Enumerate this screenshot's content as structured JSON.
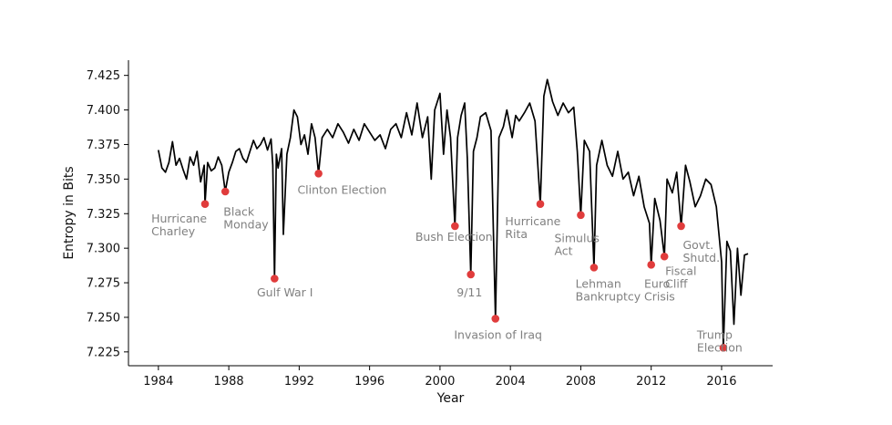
{
  "chart_data": {
    "type": "line",
    "title": "",
    "xlabel": "Year",
    "ylabel": "Entropy in Bits",
    "xlim": [
      1982.3,
      2018.9
    ],
    "ylim": [
      7.215,
      7.436
    ],
    "grid": false,
    "x_ticks": [
      1984,
      1988,
      1992,
      1996,
      2000,
      2004,
      2008,
      2012,
      2016
    ],
    "y_ticks": [
      7.225,
      7.25,
      7.275,
      7.3,
      7.325,
      7.35,
      7.375,
      7.4,
      7.425
    ],
    "series": [
      {
        "name": "Entropy",
        "color": "#000000",
        "points": [
          [
            1984.0,
            7.371
          ],
          [
            1984.2,
            7.358
          ],
          [
            1984.4,
            7.355
          ],
          [
            1984.6,
            7.362
          ],
          [
            1984.8,
            7.377
          ],
          [
            1985.0,
            7.36
          ],
          [
            1985.2,
            7.365
          ],
          [
            1985.4,
            7.357
          ],
          [
            1985.6,
            7.35
          ],
          [
            1985.8,
            7.366
          ],
          [
            1986.0,
            7.36
          ],
          [
            1986.2,
            7.37
          ],
          [
            1986.4,
            7.348
          ],
          [
            1986.6,
            7.36
          ],
          [
            1986.65,
            7.332
          ],
          [
            1986.8,
            7.362
          ],
          [
            1987.0,
            7.356
          ],
          [
            1987.2,
            7.358
          ],
          [
            1987.4,
            7.366
          ],
          [
            1987.6,
            7.36
          ],
          [
            1987.8,
            7.341
          ],
          [
            1988.0,
            7.355
          ],
          [
            1988.2,
            7.362
          ],
          [
            1988.4,
            7.37
          ],
          [
            1988.6,
            7.372
          ],
          [
            1988.8,
            7.365
          ],
          [
            1989.0,
            7.362
          ],
          [
            1989.2,
            7.37
          ],
          [
            1989.4,
            7.378
          ],
          [
            1989.6,
            7.372
          ],
          [
            1989.8,
            7.375
          ],
          [
            1990.0,
            7.38
          ],
          [
            1990.2,
            7.371
          ],
          [
            1990.4,
            7.379
          ],
          [
            1990.5,
            7.36
          ],
          [
            1990.6,
            7.278
          ],
          [
            1990.7,
            7.368
          ],
          [
            1990.8,
            7.358
          ],
          [
            1991.0,
            7.372
          ],
          [
            1991.1,
            7.31
          ],
          [
            1991.3,
            7.368
          ],
          [
            1991.5,
            7.38
          ],
          [
            1991.7,
            7.4
          ],
          [
            1991.9,
            7.395
          ],
          [
            1992.1,
            7.375
          ],
          [
            1992.3,
            7.382
          ],
          [
            1992.5,
            7.368
          ],
          [
            1992.7,
            7.39
          ],
          [
            1992.9,
            7.38
          ],
          [
            1993.1,
            7.354
          ],
          [
            1993.3,
            7.38
          ],
          [
            1993.6,
            7.386
          ],
          [
            1993.9,
            7.38
          ],
          [
            1994.2,
            7.39
          ],
          [
            1994.5,
            7.384
          ],
          [
            1994.8,
            7.376
          ],
          [
            1995.1,
            7.386
          ],
          [
            1995.4,
            7.378
          ],
          [
            1995.7,
            7.39
          ],
          [
            1996.0,
            7.384
          ],
          [
            1996.3,
            7.378
          ],
          [
            1996.6,
            7.382
          ],
          [
            1996.9,
            7.372
          ],
          [
            1997.2,
            7.386
          ],
          [
            1997.5,
            7.39
          ],
          [
            1997.8,
            7.38
          ],
          [
            1998.1,
            7.398
          ],
          [
            1998.4,
            7.382
          ],
          [
            1998.7,
            7.405
          ],
          [
            1999.0,
            7.38
          ],
          [
            1999.3,
            7.395
          ],
          [
            1999.5,
            7.35
          ],
          [
            1999.7,
            7.4
          ],
          [
            2000.0,
            7.412
          ],
          [
            2000.2,
            7.368
          ],
          [
            2000.4,
            7.4
          ],
          [
            2000.6,
            7.38
          ],
          [
            2000.85,
            7.316
          ],
          [
            2001.0,
            7.38
          ],
          [
            2001.2,
            7.396
          ],
          [
            2001.4,
            7.405
          ],
          [
            2001.55,
            7.365
          ],
          [
            2001.75,
            7.281
          ],
          [
            2001.9,
            7.37
          ],
          [
            2002.1,
            7.38
          ],
          [
            2002.3,
            7.395
          ],
          [
            2002.6,
            7.398
          ],
          [
            2002.9,
            7.385
          ],
          [
            2003.15,
            7.249
          ],
          [
            2003.35,
            7.38
          ],
          [
            2003.6,
            7.388
          ],
          [
            2003.8,
            7.4
          ],
          [
            2004.1,
            7.38
          ],
          [
            2004.3,
            7.396
          ],
          [
            2004.5,
            7.392
          ],
          [
            2004.8,
            7.398
          ],
          [
            2005.1,
            7.405
          ],
          [
            2005.4,
            7.392
          ],
          [
            2005.7,
            7.332
          ],
          [
            2005.9,
            7.41
          ],
          [
            2006.1,
            7.422
          ],
          [
            2006.4,
            7.406
          ],
          [
            2006.7,
            7.396
          ],
          [
            2007.0,
            7.405
          ],
          [
            2007.3,
            7.398
          ],
          [
            2007.6,
            7.402
          ],
          [
            2007.8,
            7.37
          ],
          [
            2008.0,
            7.324
          ],
          [
            2008.2,
            7.378
          ],
          [
            2008.5,
            7.37
          ],
          [
            2008.75,
            7.286
          ],
          [
            2008.9,
            7.36
          ],
          [
            2009.2,
            7.378
          ],
          [
            2009.5,
            7.36
          ],
          [
            2009.8,
            7.352
          ],
          [
            2010.1,
            7.37
          ],
          [
            2010.4,
            7.35
          ],
          [
            2010.7,
            7.355
          ],
          [
            2011.0,
            7.338
          ],
          [
            2011.3,
            7.352
          ],
          [
            2011.6,
            7.33
          ],
          [
            2011.9,
            7.318
          ],
          [
            2012.0,
            7.288
          ],
          [
            2012.2,
            7.336
          ],
          [
            2012.5,
            7.32
          ],
          [
            2012.75,
            7.294
          ],
          [
            2012.9,
            7.35
          ],
          [
            2013.2,
            7.34
          ],
          [
            2013.45,
            7.355
          ],
          [
            2013.7,
            7.316
          ],
          [
            2013.95,
            7.36
          ],
          [
            2014.2,
            7.348
          ],
          [
            2014.5,
            7.33
          ],
          [
            2014.8,
            7.338
          ],
          [
            2015.1,
            7.35
          ],
          [
            2015.4,
            7.346
          ],
          [
            2015.7,
            7.33
          ],
          [
            2016.0,
            7.29
          ],
          [
            2016.1,
            7.228
          ],
          [
            2016.3,
            7.305
          ],
          [
            2016.5,
            7.298
          ],
          [
            2016.7,
            7.245
          ],
          [
            2016.9,
            7.3
          ],
          [
            2017.1,
            7.266
          ],
          [
            2017.3,
            7.295
          ],
          [
            2017.5,
            7.296
          ]
        ]
      }
    ],
    "markers": [
      {
        "x": 1986.65,
        "y": 7.332,
        "color": "#e03c3c"
      },
      {
        "x": 1987.8,
        "y": 7.341,
        "color": "#e03c3c"
      },
      {
        "x": 1990.6,
        "y": 7.278,
        "color": "#e03c3c"
      },
      {
        "x": 1993.1,
        "y": 7.354,
        "color": "#e03c3c"
      },
      {
        "x": 2000.85,
        "y": 7.316,
        "color": "#e03c3c"
      },
      {
        "x": 2001.75,
        "y": 7.281,
        "color": "#e03c3c"
      },
      {
        "x": 2003.15,
        "y": 7.249,
        "color": "#e03c3c"
      },
      {
        "x": 2005.7,
        "y": 7.332,
        "color": "#e03c3c"
      },
      {
        "x": 2008.0,
        "y": 7.324,
        "color": "#e03c3c"
      },
      {
        "x": 2008.75,
        "y": 7.286,
        "color": "#e03c3c"
      },
      {
        "x": 2012.0,
        "y": 7.288,
        "color": "#e03c3c"
      },
      {
        "x": 2012.75,
        "y": 7.294,
        "color": "#e03c3c"
      },
      {
        "x": 2013.7,
        "y": 7.316,
        "color": "#e03c3c"
      },
      {
        "x": 2016.1,
        "y": 7.228,
        "color": "#e03c3c"
      }
    ],
    "annotations": [
      {
        "lines": [
          "Hurricane",
          "Charley"
        ],
        "x": 1983.6,
        "y": 7.3185
      },
      {
        "lines": [
          "Black",
          "Monday"
        ],
        "x": 1987.7,
        "y": 7.3235
      },
      {
        "lines": [
          "Gulf War I"
        ],
        "x": 1989.6,
        "y": 7.265
      },
      {
        "lines": [
          "Clinton Election"
        ],
        "x": 1991.9,
        "y": 7.3395
      },
      {
        "lines": [
          "Bush Election"
        ],
        "x": 1998.6,
        "y": 7.3055
      },
      {
        "lines": [
          "9/11"
        ],
        "x": 2000.95,
        "y": 7.265
      },
      {
        "lines": [
          "Invasion of Iraq"
        ],
        "x": 2000.8,
        "y": 7.2345
      },
      {
        "lines": [
          "Hurricane",
          "Rita"
        ],
        "x": 2003.7,
        "y": 7.3165
      },
      {
        "lines": [
          "Simulus",
          "Act"
        ],
        "x": 2006.5,
        "y": 7.3045
      },
      {
        "lines": [
          "Lehman",
          "Bankruptcy"
        ],
        "x": 2007.7,
        "y": 7.2715
      },
      {
        "lines": [
          "Euro",
          "Crisis"
        ],
        "x": 2011.6,
        "y": 7.2715
      },
      {
        "lines": [
          "Fiscal",
          "Cliff"
        ],
        "x": 2012.8,
        "y": 7.2805
      },
      {
        "lines": [
          "Govt.",
          "Shutd."
        ],
        "x": 2013.8,
        "y": 7.2995
      },
      {
        "lines": [
          "Trump",
          "Election"
        ],
        "x": 2014.6,
        "y": 7.2345
      }
    ]
  }
}
